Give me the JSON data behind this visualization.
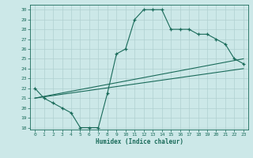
{
  "xlabel": "Humidex (Indice chaleur)",
  "bg_color": "#cce8e8",
  "grid_color": "#b0d0d0",
  "line_color": "#1a6b5a",
  "xlim": [
    -0.5,
    23.5
  ],
  "ylim": [
    17.8,
    30.5
  ],
  "xticks": [
    0,
    1,
    2,
    3,
    4,
    5,
    6,
    7,
    8,
    9,
    10,
    11,
    12,
    13,
    14,
    15,
    16,
    17,
    18,
    19,
    20,
    21,
    22,
    23
  ],
  "yticks": [
    18,
    19,
    20,
    21,
    22,
    23,
    24,
    25,
    26,
    27,
    28,
    29,
    30
  ],
  "main_curve": {
    "x": [
      0,
      1,
      2,
      3,
      4,
      5,
      6,
      7,
      8,
      9,
      10,
      11,
      12,
      13,
      14,
      15,
      16,
      17,
      18,
      19,
      20,
      21,
      22,
      23
    ],
    "y": [
      22,
      21,
      20.5,
      20,
      19.5,
      18,
      18,
      18,
      21.5,
      25.5,
      26,
      29,
      30,
      30,
      30,
      28,
      28,
      28,
      27.5,
      27.5,
      27,
      26.5,
      25,
      24.5
    ]
  },
  "line1": {
    "x": [
      0,
      23
    ],
    "y": [
      21,
      25
    ]
  },
  "line2": {
    "x": [
      0,
      23
    ],
    "y": [
      21,
      24
    ]
  }
}
